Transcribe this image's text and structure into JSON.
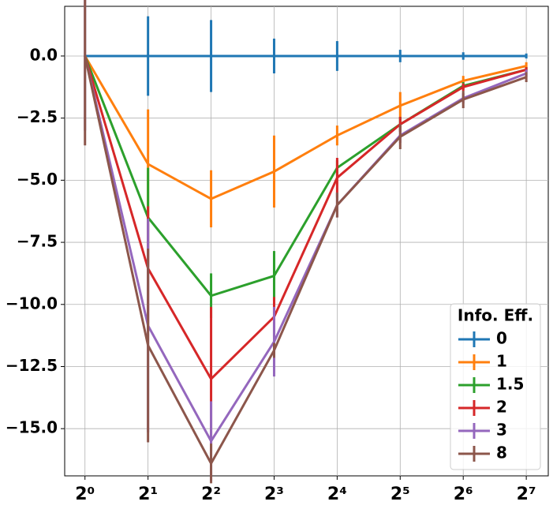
{
  "chart_data": {
    "type": "line",
    "x_scale": "log",
    "log_base": 2,
    "x": [
      1,
      2,
      4,
      8,
      16,
      32,
      64,
      128
    ],
    "xlim": [
      0.8,
      163
    ],
    "xticks": [
      {
        "value": 1,
        "label": "2⁰"
      },
      {
        "value": 2,
        "label": "2¹"
      },
      {
        "value": 4,
        "label": "2²"
      },
      {
        "value": 8,
        "label": "2³"
      },
      {
        "value": 16,
        "label": "2⁴"
      },
      {
        "value": 32,
        "label": "2⁵"
      },
      {
        "value": 64,
        "label": "2⁶"
      },
      {
        "value": 128,
        "label": "2⁷"
      }
    ],
    "ylim": [
      -16.9,
      2.0
    ],
    "yticks": [
      {
        "value": 0,
        "label": "0.0"
      },
      {
        "value": -2.5,
        "label": "−2.5"
      },
      {
        "value": -5,
        "label": "−5.0"
      },
      {
        "value": -7.5,
        "label": "−7.5"
      },
      {
        "value": -10,
        "label": "−10.0"
      },
      {
        "value": -12.5,
        "label": "−12.5"
      },
      {
        "value": -15,
        "label": "−15.0"
      }
    ],
    "grid": true,
    "legend_position": "lower right",
    "legend_title": "Info. Eff.",
    "series": [
      {
        "name": "0",
        "color": "#1f77b4",
        "values": [
          0,
          0,
          0,
          0,
          0,
          0,
          0,
          0
        ],
        "errors": [
          0,
          1.6,
          1.45,
          0.7,
          0.6,
          0.25,
          0.15,
          0.1
        ]
      },
      {
        "name": "1",
        "color": "#ff7f0e",
        "values": [
          0,
          -4.35,
          -5.75,
          -4.65,
          -3.2,
          -2.0,
          -1.0,
          -0.4
        ],
        "errors": [
          0,
          2.2,
          1.15,
          1.45,
          0.4,
          0.55,
          0.2,
          0.15
        ]
      },
      {
        "name": "1.5",
        "color": "#2ca02c",
        "values": [
          0,
          -6.5,
          -9.65,
          -8.85,
          -4.5,
          -2.75,
          -1.2,
          -0.55
        ],
        "errors": [
          0,
          2.0,
          0.9,
          1.0,
          0.3,
          0.3,
          0.15,
          0.1
        ]
      },
      {
        "name": "2",
        "color": "#d62728",
        "values": [
          0,
          -8.55,
          -13.0,
          -10.5,
          -4.9,
          -2.75,
          -1.25,
          -0.55
        ],
        "errors": [
          0,
          2.5,
          2.9,
          0.8,
          0.8,
          0.3,
          0.15,
          0.1
        ]
      },
      {
        "name": "3",
        "color": "#9467bd",
        "values": [
          0,
          -10.85,
          -15.5,
          -11.5,
          -6.0,
          -3.2,
          -1.7,
          -0.7
        ],
        "errors": [
          3.0,
          4.3,
          1.6,
          1.4,
          0.5,
          0.3,
          0.2,
          0.15
        ]
      },
      {
        "name": "8",
        "color": "#8c564b",
        "values": [
          0,
          -11.65,
          -16.4,
          -11.85,
          -6.0,
          -3.25,
          -1.75,
          -0.85
        ],
        "errors": [
          3.6,
          3.9,
          0.8,
          0.3,
          0.5,
          0.5,
          0.35,
          0.2
        ]
      }
    ]
  }
}
